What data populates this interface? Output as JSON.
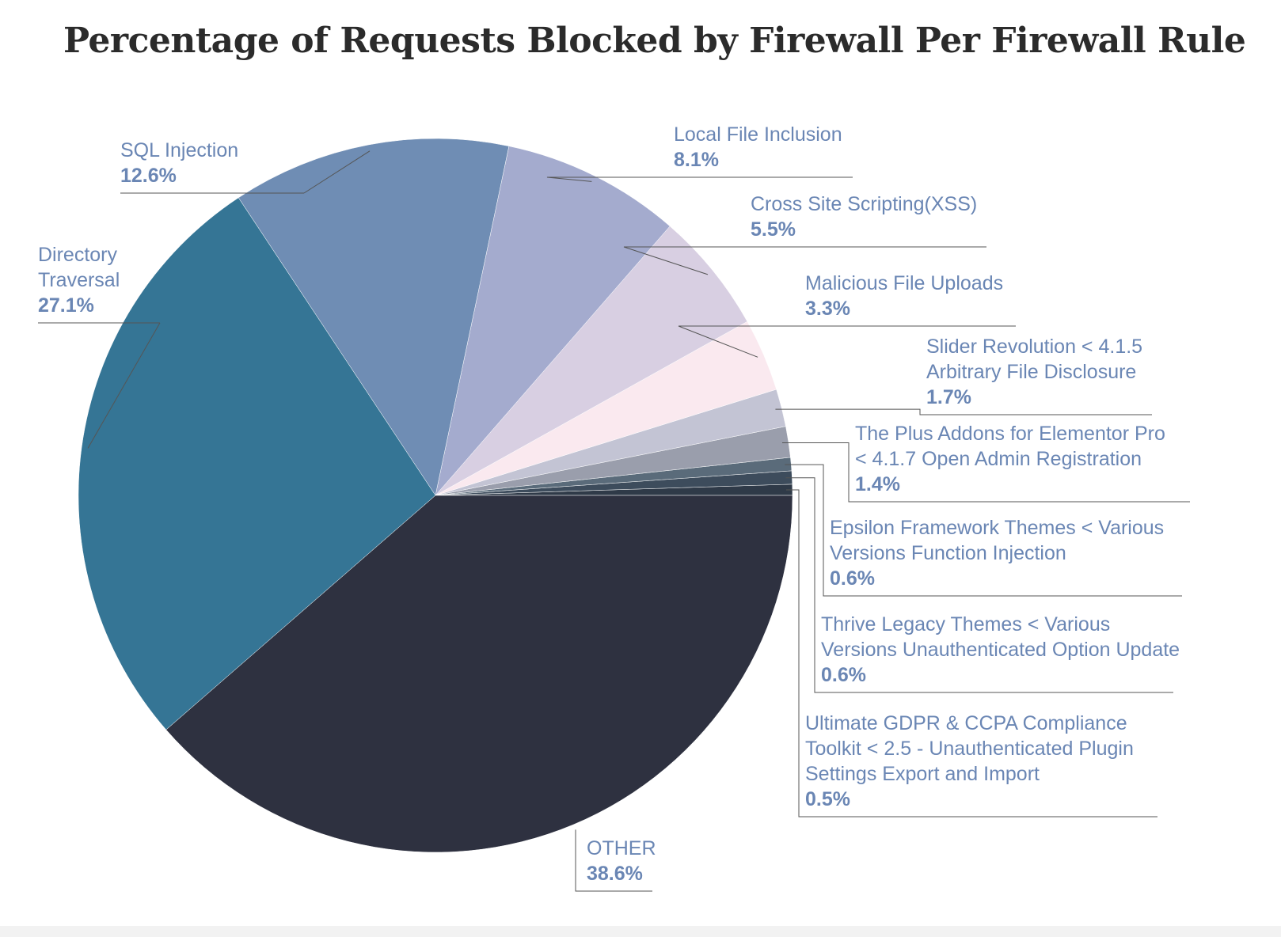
{
  "chart_data": {
    "type": "pie",
    "title": "Percentage of Requests Blocked by Firewall Per Firewall Rule",
    "start_angle_deg": 0,
    "direction": "counterclockwise",
    "slices": [
      {
        "label_lines": [
          "Ultimate GDPR & CCPA Compliance",
          "Toolkit < 2.5 - Unauthenticated Plugin",
          "Settings Export and Import"
        ],
        "value": 0.5,
        "pct_label": "0.5%",
        "color": "#2f3a48"
      },
      {
        "label_lines": [
          "Thrive Legacy Themes < Various",
          "Versions Unauthenticated Option Update"
        ],
        "value": 0.6,
        "pct_label": "0.6%",
        "color": "#3d4c5c"
      },
      {
        "label_lines": [
          "Epsilon Framework Themes < Various",
          "Versions Function Injection"
        ],
        "value": 0.6,
        "pct_label": "0.6%",
        "color": "#5a6b7a"
      },
      {
        "label_lines": [
          "The Plus Addons for Elementor Pro",
          "< 4.1.7 Open Admin Registration"
        ],
        "value": 1.4,
        "pct_label": "1.4%",
        "color": "#9a9eac"
      },
      {
        "label_lines": [
          "Slider Revolution < 4.1.5",
          "Arbitrary File Disclosure"
        ],
        "value": 1.7,
        "pct_label": "1.7%",
        "color": "#c3c4d4"
      },
      {
        "label_lines": [
          "Malicious File Uploads"
        ],
        "value": 3.3,
        "pct_label": "3.3%",
        "color": "#fae9ef"
      },
      {
        "label_lines": [
          "Cross Site Scripting(XSS)"
        ],
        "value": 5.5,
        "pct_label": "5.5%",
        "color": "#d8cfe2"
      },
      {
        "label_lines": [
          "Local File Inclusion"
        ],
        "value": 8.1,
        "pct_label": "8.1%",
        "color": "#a4abce"
      },
      {
        "label_lines": [
          "SQL Injection"
        ],
        "value": 12.6,
        "pct_label": "12.6%",
        "color": "#6f8db4"
      },
      {
        "label_lines": [
          "Directory",
          "Traversal"
        ],
        "value": 27.1,
        "pct_label": "27.1%",
        "color": "#357595"
      },
      {
        "label_lines": [
          "OTHER"
        ],
        "value": 38.6,
        "pct_label": "38.6%",
        "color": "#2e3140"
      }
    ],
    "colors": {
      "label_text": "#6a86b4",
      "leader_line": "#555555",
      "slice_border": "#ffffff"
    }
  }
}
